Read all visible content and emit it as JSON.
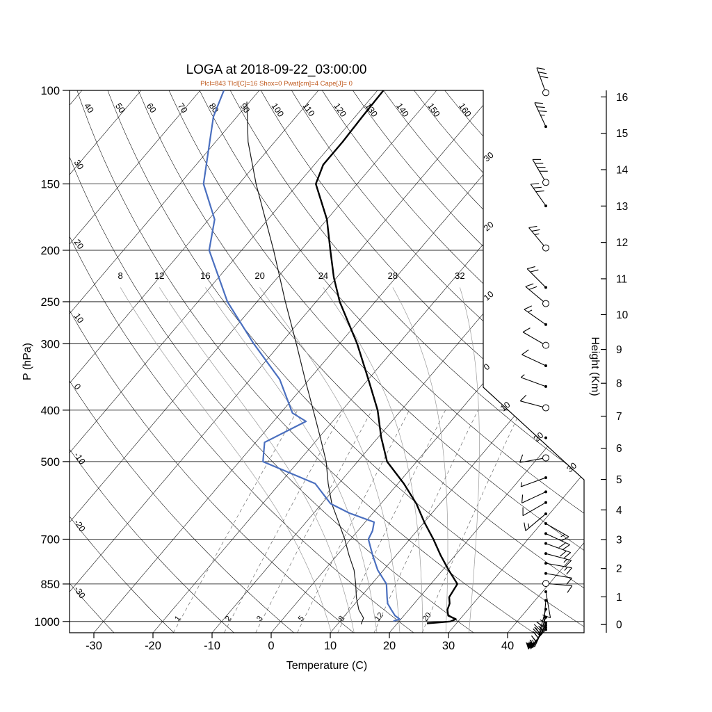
{
  "title": "LOGA at 2018-09-22_03:00:00",
  "subtitle": "Plcl=843 Tlcl[C]=16 Shox=0 Pwat[cm]=4 Cape[J]= 0",
  "parameters": {
    "Plcl": 843,
    "Tlcl_C": 16,
    "Shox": 0,
    "Pwat_cm": 4,
    "Cape_J": 0
  },
  "colors": {
    "temperature": "#000000",
    "dewpoint": "#4a6fbf",
    "parcel": "#1a1a1a",
    "subtitle": "#c05a1e",
    "isotherm": "#000000",
    "dry_adiabat": "#000000",
    "moist_adiabat": "#9a9a9a",
    "mixing_ratio": "#555555",
    "axis": "#000000"
  },
  "chart_data": {
    "type": "skewt",
    "axes": {
      "pressure": {
        "label": "P (hPa)",
        "units": "hPa",
        "ticks": [
          100,
          150,
          200,
          250,
          300,
          400,
          500,
          700,
          850,
          1000
        ],
        "min": 100,
        "max": 1050
      },
      "temperature": {
        "label": "Temperature (C)",
        "units": "C",
        "ticks": [
          -30,
          -20,
          -10,
          0,
          10,
          20,
          30,
          40
        ]
      },
      "height": {
        "label": "Height (Km)",
        "units": "Km",
        "ticks": [
          0,
          1,
          2,
          3,
          4,
          5,
          6,
          7,
          8,
          9,
          10,
          11,
          12,
          13,
          14,
          15,
          16
        ]
      }
    },
    "background": {
      "isotherms": {
        "min": -110,
        "max": 40,
        "step": 10
      },
      "dry_adiabats": {
        "min": -30,
        "max": 160,
        "step": 10,
        "top_labels": [
          50,
          60,
          70,
          80,
          90,
          100,
          110,
          120,
          130,
          140,
          150,
          160
        ],
        "left_labels": [
          40,
          30,
          20,
          10,
          0,
          -10,
          -20,
          -30
        ]
      },
      "moist_adiabats": {
        "values": [
          8,
          12,
          16,
          20,
          24,
          28,
          32
        ]
      },
      "mixing_ratio_lines": {
        "values": [
          1,
          2,
          3,
          5,
          8,
          12,
          20
        ]
      },
      "isotherm_labels_right": [
        {
          "value": -30,
          "text": "30"
        },
        {
          "value": -20,
          "text": "20"
        },
        {
          "value": -10,
          "text": "10"
        },
        {
          "value": 0,
          "text": "0"
        }
      ],
      "isotherm_labels_diagonal": [
        {
          "value": 10,
          "text": "10"
        },
        {
          "value": 20,
          "text": "20"
        },
        {
          "value": 30,
          "text": "30"
        }
      ]
    },
    "sounding": {
      "temperature": [
        [
          1008,
          25
        ],
        [
          1000,
          28.7
        ],
        [
          990,
          29.3
        ],
        [
          975,
          27.5
        ],
        [
          950,
          26.5
        ],
        [
          925,
          26
        ],
        [
          900,
          25
        ],
        [
          850,
          24.5
        ],
        [
          800,
          21
        ],
        [
          750,
          17.5
        ],
        [
          700,
          14
        ],
        [
          650,
          10
        ],
        [
          600,
          6
        ],
        [
          550,
          1
        ],
        [
          500,
          -5
        ],
        [
          450,
          -9.5
        ],
        [
          400,
          -14
        ],
        [
          350,
          -20
        ],
        [
          300,
          -27
        ],
        [
          250,
          -36
        ],
        [
          225,
          -40.5
        ],
        [
          200,
          -45
        ],
        [
          175,
          -50
        ],
        [
          150,
          -57
        ],
        [
          138,
          -58.5
        ],
        [
          125,
          -58.5
        ],
        [
          112,
          -58.8
        ],
        [
          100,
          -59
        ]
      ],
      "dewpoint": [
        [
          998,
          19
        ],
        [
          990,
          19.8
        ],
        [
          975,
          18.5
        ],
        [
          950,
          17
        ],
        [
          925,
          15.5
        ],
        [
          900,
          14.5
        ],
        [
          850,
          12.5
        ],
        [
          800,
          9
        ],
        [
          750,
          6
        ],
        [
          700,
          3
        ],
        [
          675,
          2.5
        ],
        [
          650,
          1.5
        ],
        [
          625,
          -4
        ],
        [
          600,
          -8.5
        ],
        [
          550,
          -14
        ],
        [
          500,
          -26
        ],
        [
          460,
          -28.5
        ],
        [
          420,
          -24.5
        ],
        [
          405,
          -28
        ],
        [
          350,
          -35
        ],
        [
          300,
          -44.5
        ],
        [
          250,
          -55
        ],
        [
          200,
          -65.5
        ],
        [
          175,
          -69
        ],
        [
          150,
          -76
        ],
        [
          125,
          -81
        ],
        [
          112,
          -84
        ],
        [
          100,
          -86
        ]
      ],
      "parcel": [
        [
          1012,
          14
        ],
        [
          985,
          13.5
        ],
        [
          950,
          11.5
        ],
        [
          900,
          9.3
        ],
        [
          850,
          7.3
        ],
        [
          800,
          5
        ],
        [
          750,
          2
        ],
        [
          700,
          -1
        ],
        [
          650,
          -4.5
        ],
        [
          600,
          -8.3
        ],
        [
          550,
          -11.8
        ],
        [
          500,
          -15.3
        ],
        [
          450,
          -19.8
        ],
        [
          400,
          -24.9
        ],
        [
          350,
          -30.7
        ],
        [
          300,
          -37.3
        ],
        [
          250,
          -45.2
        ],
        [
          200,
          -54.6
        ],
        [
          150,
          -67.1
        ],
        [
          125,
          -74.5
        ],
        [
          105,
          -80.5
        ]
      ]
    },
    "winds": [
      {
        "p": 101,
        "spd": 30,
        "dir": 340,
        "sym": "circle"
      },
      {
        "p": 117,
        "spd": 35,
        "dir": 335,
        "sym": "dot"
      },
      {
        "p": 149,
        "spd": 40,
        "dir": 330,
        "sym": "circle"
      },
      {
        "p": 165,
        "spd": 30,
        "dir": 325,
        "sym": "dot"
      },
      {
        "p": 198,
        "spd": 25,
        "dir": 320,
        "sym": "circle"
      },
      {
        "p": 235,
        "spd": 20,
        "dir": 315,
        "sym": "dot"
      },
      {
        "p": 252,
        "spd": 20,
        "dir": 310,
        "sym": "circle"
      },
      {
        "p": 276,
        "spd": 15,
        "dir": 305,
        "sym": "dot"
      },
      {
        "p": 302,
        "spd": 10,
        "dir": 300,
        "sym": "circle"
      },
      {
        "p": 330,
        "spd": 8,
        "dir": 295,
        "sym": "dot"
      },
      {
        "p": 361,
        "spd": 5,
        "dir": 290,
        "sym": "dot"
      },
      {
        "p": 396,
        "spd": 8,
        "dir": 285,
        "sym": "circle"
      },
      {
        "p": 451,
        "spd": 0,
        "dir": 280,
        "sym": "dot"
      },
      {
        "p": 492,
        "spd": 10,
        "dir": 260,
        "sym": "circle"
      },
      {
        "p": 536,
        "spd": 5,
        "dir": 250,
        "sym": "dot"
      },
      {
        "p": 570,
        "spd": 8,
        "dir": 245,
        "sym": "dot"
      },
      {
        "p": 597,
        "spd": 10,
        "dir": 240,
        "sym": "dot"
      },
      {
        "p": 627,
        "spd": 15,
        "dir": 230,
        "sym": "dot"
      },
      {
        "p": 654,
        "spd": 15,
        "dir": 120,
        "sym": "dot"
      },
      {
        "p": 683,
        "spd": 20,
        "dir": 115,
        "sym": "dot"
      },
      {
        "p": 713,
        "spd": 20,
        "dir": 110,
        "sym": "dot"
      },
      {
        "p": 745,
        "spd": 15,
        "dir": 105,
        "sym": "dot"
      },
      {
        "p": 777,
        "spd": 15,
        "dir": 100,
        "sym": "dot"
      },
      {
        "p": 812,
        "spd": 10,
        "dir": 100,
        "sym": "dot"
      },
      {
        "p": 848,
        "spd": 10,
        "dir": 95,
        "sym": "circle"
      },
      {
        "p": 879,
        "spd": 10,
        "dir": 170,
        "sym": "dot"
      },
      {
        "p": 913,
        "spd": 15,
        "dir": 185,
        "sym": "dot"
      },
      {
        "p": 948,
        "spd": 25,
        "dir": 195,
        "sym": "dot"
      },
      {
        "p": 982,
        "spd": 35,
        "dir": 200,
        "sym": "dot"
      },
      {
        "p": 1006,
        "spd": 45,
        "dir": 205,
        "sym": "dot"
      },
      {
        "p": 1016,
        "spd": 50,
        "dir": 210,
        "sym": "dot"
      },
      {
        "p": 1026,
        "spd": 55,
        "dir": 215,
        "sym": "dot"
      },
      {
        "p": 1036,
        "spd": 55,
        "dir": 222,
        "sym": "dot"
      }
    ]
  }
}
